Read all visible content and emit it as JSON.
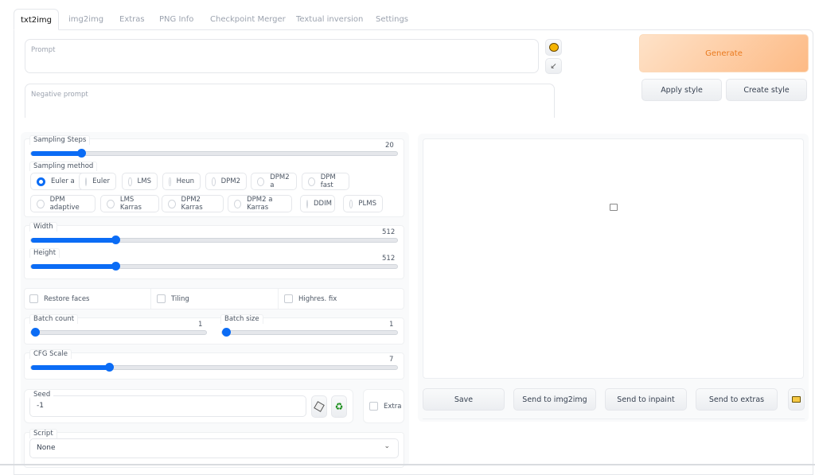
{
  "tabs": [
    {
      "label": "txt2img",
      "active": true
    },
    {
      "label": "img2img"
    },
    {
      "label": "Extras"
    },
    {
      "label": "PNG Info"
    },
    {
      "label": "Checkpoint Merger"
    },
    {
      "label": "Textual inversion"
    },
    {
      "label": "Settings"
    }
  ],
  "prompt": {
    "placeholder": "Prompt",
    "value": ""
  },
  "negative_prompt": {
    "placeholder": "Negative prompt",
    "value": ""
  },
  "icons": {
    "style_button": "palette-icon",
    "paste_button": "arrow-down-left-icon",
    "random_seed": "dice-icon",
    "reuse_seed": "recycle-icon",
    "open_folder": "folder-icon",
    "image_placeholder": "image-icon",
    "dropdown": "chevron-down-icon"
  },
  "actions": {
    "generate": "Generate",
    "apply_style": "Apply style",
    "create_style": "Create style"
  },
  "colors": {
    "accent": "#0b6cf5",
    "generate_text": "#ea7a1e",
    "generate_bg": "#fdc697"
  },
  "sampling_steps": {
    "label": "Sampling Steps",
    "value": "20",
    "fraction": 0.136
  },
  "sampling_method": {
    "label": "Sampling method",
    "selected": "Euler a",
    "options": [
      "Euler a",
      "Euler",
      "LMS",
      "Heun",
      "DPM2",
      "DPM2 a",
      "DPM fast",
      "DPM adaptive",
      "LMS Karras",
      "DPM2 Karras",
      "DPM2 a Karras",
      "DDIM",
      "PLMS"
    ]
  },
  "width": {
    "label": "Width",
    "value": "512",
    "fraction": 0.23
  },
  "height": {
    "label": "Height",
    "value": "512",
    "fraction": 0.23
  },
  "checkboxes": [
    {
      "label": "Restore faces",
      "checked": false
    },
    {
      "label": "Tiling",
      "checked": false
    },
    {
      "label": "Highres. fix",
      "checked": false
    }
  ],
  "batch_count": {
    "label": "Batch count",
    "value": "1",
    "fraction": 0
  },
  "batch_size": {
    "label": "Batch size",
    "value": "1",
    "fraction": 0
  },
  "cfg_scale": {
    "label": "CFG Scale",
    "value": "7",
    "fraction": 0.213
  },
  "seed": {
    "label": "Seed",
    "value": "-1",
    "extra_label": "Extra"
  },
  "script": {
    "label": "Script",
    "value": "None"
  },
  "output_buttons": {
    "save": "Save",
    "send_img2img": "Send to img2img",
    "send_inpaint": "Send to inpaint",
    "send_extras": "Send to extras"
  }
}
